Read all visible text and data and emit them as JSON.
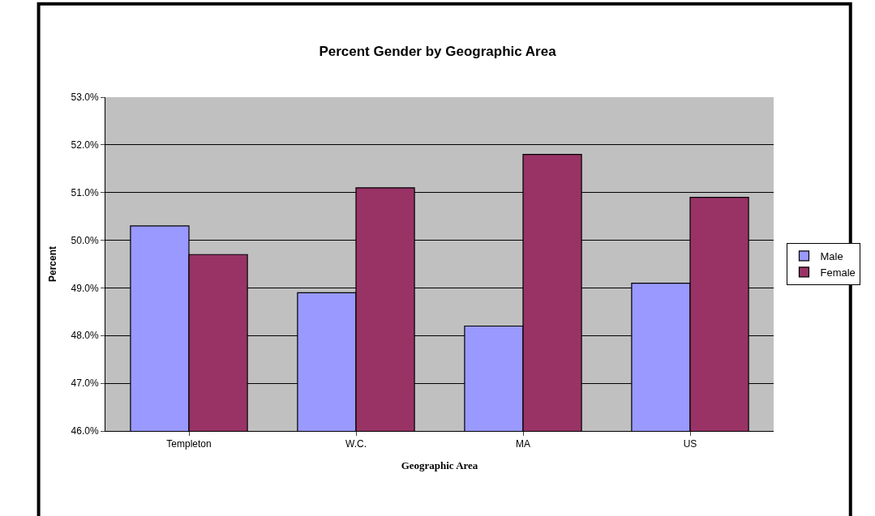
{
  "chart_data": {
    "type": "bar",
    "title": "Percent Gender by Geographic Area",
    "xlabel": "Geographic Area",
    "ylabel": "Percent",
    "categories": [
      "Templeton",
      "W.C.",
      "MA",
      "US"
    ],
    "series": [
      {
        "name": "Male",
        "color": "#9999ff",
        "values": [
          50.3,
          48.9,
          48.2,
          49.1
        ]
      },
      {
        "name": "Female",
        "color": "#993366",
        "values": [
          49.7,
          51.1,
          51.8,
          50.9
        ]
      }
    ],
    "ylim": [
      46,
      53
    ],
    "yticks": [
      {
        "value": 46,
        "label": "46.0%"
      },
      {
        "value": 47,
        "label": "47.0%"
      },
      {
        "value": 48,
        "label": "48.0%"
      },
      {
        "value": 49,
        "label": "49.0%"
      },
      {
        "value": 50,
        "label": "50.0%"
      },
      {
        "value": 51,
        "label": "51.0%"
      },
      {
        "value": 52,
        "label": "52.0%"
      },
      {
        "value": 53,
        "label": "53.0%"
      }
    ],
    "grid": "y",
    "legend": "right"
  }
}
